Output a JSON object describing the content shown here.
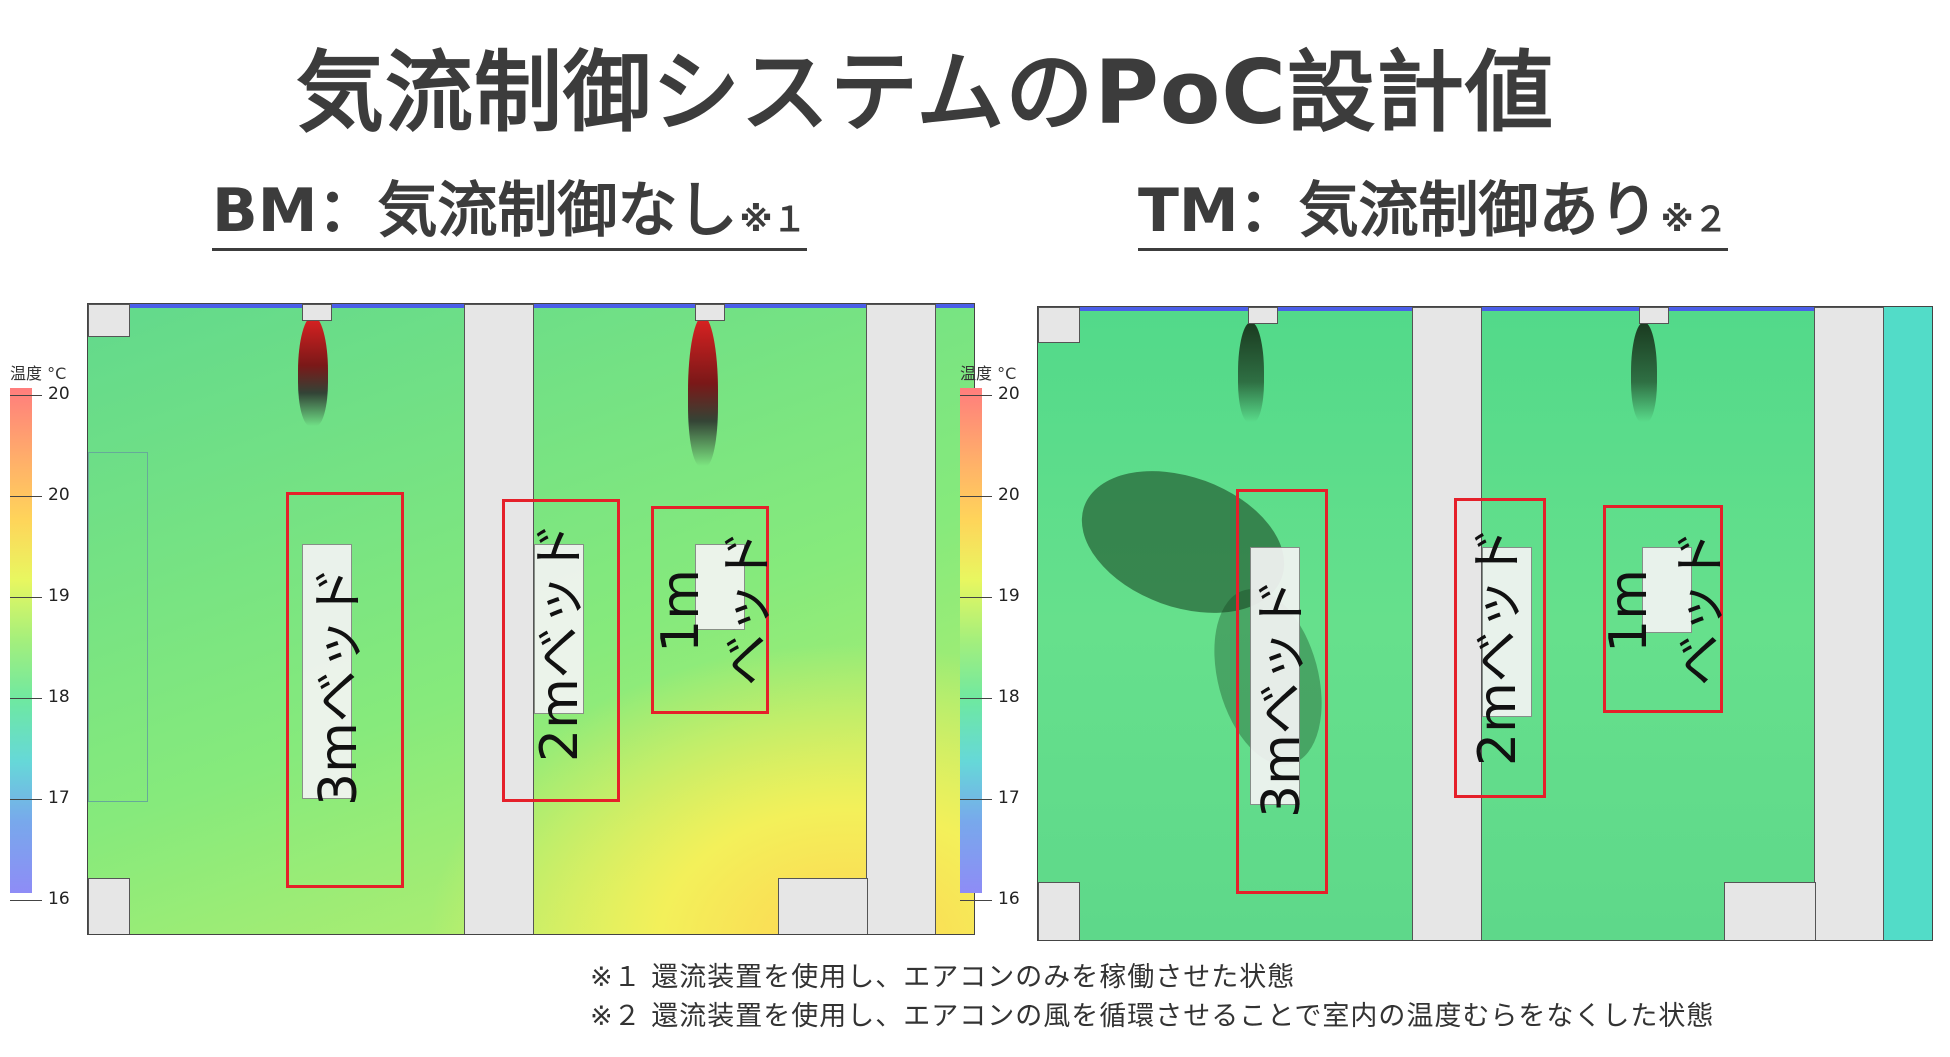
{
  "title": "気流制御システムのPoC設計値",
  "panels": [
    {
      "heading": "BM：気流制御なし",
      "note": "※１",
      "scale": {
        "title": "温度 °C",
        "ticks": [
          "20",
          "20",
          "19",
          "18",
          "17",
          "16"
        ]
      },
      "beds": [
        "3mベッド",
        "2mベッド",
        "1m",
        "ベッド"
      ]
    },
    {
      "heading": "TM：気流制御あり",
      "note": "※２",
      "scale": {
        "title": "温度 °C",
        "ticks": [
          "20",
          "20",
          "19",
          "18",
          "17",
          "16"
        ]
      },
      "beds": [
        "3mベッド",
        "2mベッド",
        "1m",
        "ベッド"
      ]
    }
  ],
  "footnotes": [
    "※１ 還流装置を使用し、エアコンのみを稼働させた状態",
    "※２ 還流装置を使用し、エアコンの風を循環させることで室内の温度むらをなくした状態"
  ],
  "colors": {
    "warm": "#ffd85a",
    "mid": "#7ee88a",
    "cool": "#5fd3c6",
    "red_box": "#e5202a"
  }
}
